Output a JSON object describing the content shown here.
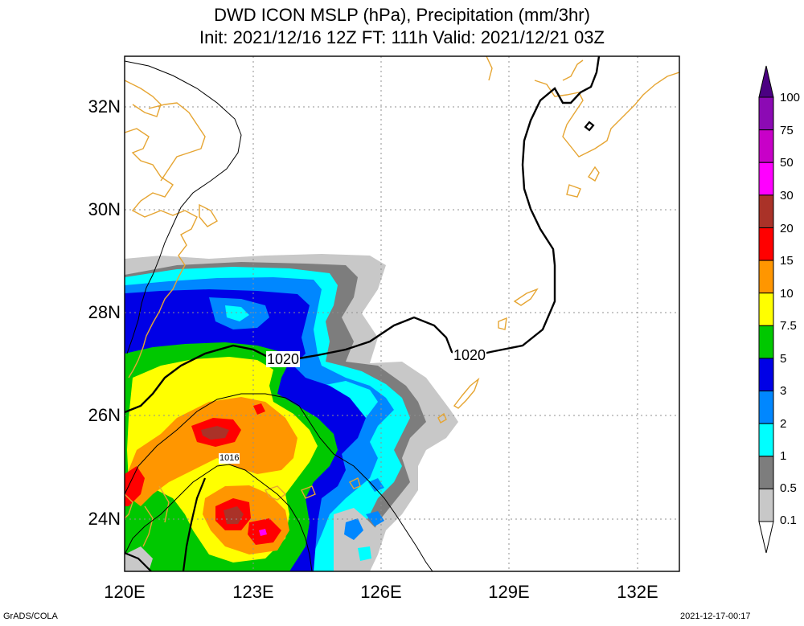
{
  "header": {
    "title_line1": "DWD ICON MSLP (hPa), Precipitation (mm/3hr)",
    "title_line2": "Init: 2021/12/16 12Z  FT: 111h  Valid: 2021/12/21 03Z"
  },
  "map": {
    "lat_labels": [
      "32N",
      "30N",
      "28N",
      "26N",
      "24N"
    ],
    "lon_labels": [
      "120E",
      "123E",
      "126E",
      "129E",
      "132E"
    ],
    "isobar_labels": [
      "1020",
      "1020",
      "1016"
    ]
  },
  "colorbar": {
    "labels": [
      "100",
      "75",
      "50",
      "30",
      "20",
      "15",
      "10",
      "7.5",
      "5",
      "3",
      "2",
      "1",
      "0.5",
      "0.1"
    ],
    "colors": [
      "#8c0ab4",
      "#c800c8",
      "#ff00ff",
      "#aa3228",
      "#ff0000",
      "#ff9600",
      "#ffff00",
      "#00c800",
      "#0000e6",
      "#0087ff",
      "#00ffff",
      "#7d7d7d",
      "#c8c8c8"
    ]
  },
  "footer": {
    "left": "GrADS/COLA",
    "right": "2021-12-17-00:17"
  }
}
